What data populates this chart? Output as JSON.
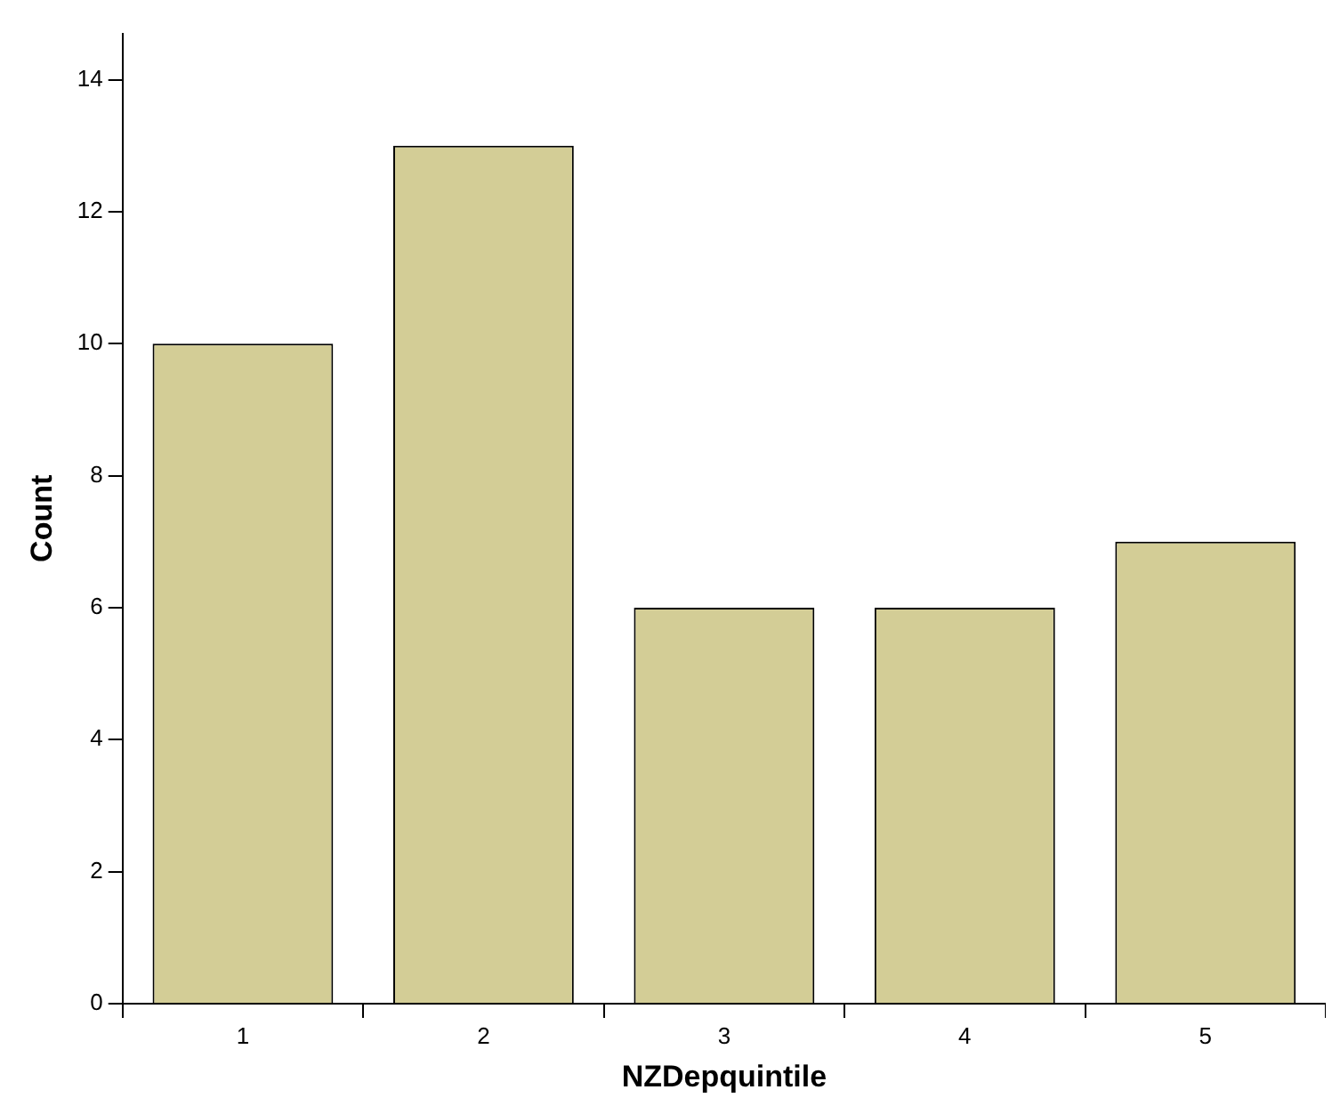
{
  "chart_data": {
    "type": "bar",
    "xlabel": "NZDepquintile",
    "ylabel": "Count",
    "categories": [
      "1",
      "2",
      "3",
      "4",
      "5"
    ],
    "values": [
      10,
      13,
      6,
      6,
      7
    ],
    "color": "#d3cd96",
    "ylim": [
      0,
      14.7
    ],
    "yticks": [
      0,
      2,
      4,
      6,
      8,
      10,
      12,
      14
    ],
    "grid": false,
    "legend": false
  }
}
